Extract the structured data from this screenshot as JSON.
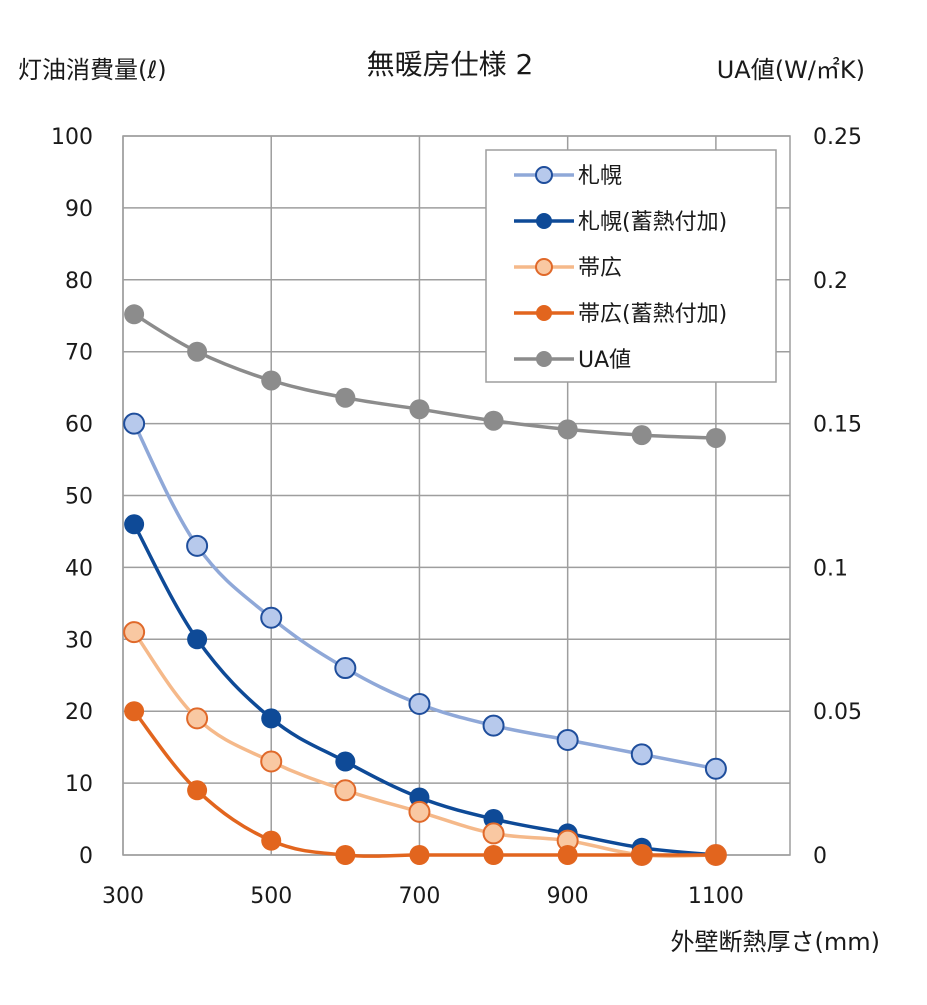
{
  "chart_data": {
    "type": "line",
    "title": "無暖房仕様 2",
    "ylabel_left": "灯油消費量(ℓ)",
    "ylabel_right": "UA値(W/㎡K)",
    "xlabel": "外壁断熱厚さ(mm)",
    "x": [
      315,
      400,
      500,
      600,
      700,
      800,
      900,
      1000,
      1100
    ],
    "xlim": [
      300,
      1200
    ],
    "x_ticks": [
      "300",
      "500",
      "700",
      "900",
      "1100"
    ],
    "ylim_left": [
      0,
      100
    ],
    "y_ticks_left": [
      "0",
      "10",
      "20",
      "30",
      "40",
      "50",
      "60",
      "70",
      "80",
      "90",
      "100"
    ],
    "ylim_right": [
      0,
      0.25
    ],
    "y_ticks_right": [
      "0",
      "0.05",
      "0.1",
      "0.15",
      "0.2",
      "0.25"
    ],
    "grid": true,
    "legend_position": "top-right",
    "series": [
      {
        "name": "札幌",
        "axis": "left",
        "marker": "hollow",
        "color": "#8fa8d8",
        "fill": "#b7c9ec",
        "edge": "#1f4e9c",
        "values": [
          60,
          43,
          33,
          26,
          21,
          18,
          16,
          14,
          12
        ]
      },
      {
        "name": "札幌(蓄熱付加)",
        "axis": "left",
        "marker": "filled",
        "color": "#0e4a97",
        "fill": "#0e4a97",
        "edge": "#0e4a97",
        "values": [
          46,
          30,
          19,
          13,
          8,
          5,
          3,
          1,
          0
        ]
      },
      {
        "name": "帯広",
        "axis": "left",
        "marker": "hollow",
        "color": "#f5b98a",
        "fill": "#f9c8a2",
        "edge": "#e0692a",
        "values": [
          31,
          19,
          13,
          9,
          6,
          3,
          2,
          0,
          0
        ]
      },
      {
        "name": "帯広(蓄熱付加)",
        "axis": "left",
        "marker": "filled",
        "color": "#e2651e",
        "fill": "#e2651e",
        "edge": "#e2651e",
        "values": [
          20,
          9,
          2,
          0,
          0,
          0,
          0,
          0,
          0
        ]
      },
      {
        "name": "UA値",
        "axis": "right",
        "marker": "filled",
        "color": "#8c8c8c",
        "fill": "#8c8c8c",
        "edge": "#8c8c8c",
        "values": [
          0.188,
          0.175,
          0.165,
          0.159,
          0.155,
          0.151,
          0.148,
          0.146,
          0.145
        ]
      }
    ]
  }
}
